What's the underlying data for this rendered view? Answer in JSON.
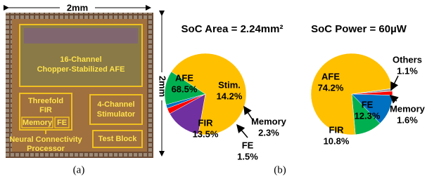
{
  "die_photo": {
    "width_label": "2mm",
    "height_label": "2mm",
    "afe_lines": [
      "16-Channel",
      "Chopper-Stabilized AFE"
    ],
    "fir_lines": [
      "Threefold",
      "FIR"
    ],
    "memory": "Memory",
    "fe": "FE",
    "stim_lines": [
      "4-Channel",
      "Stimulator"
    ],
    "ncp_lines": [
      "Neural Connectivity",
      "Processor"
    ],
    "test_block": "Test Block"
  },
  "captions": [
    "(a)",
    "(b)"
  ],
  "chart_data": [
    {
      "type": "pie",
      "title": "SoC Area = 2.24mm²",
      "categories": [
        "AFE",
        "Stim.",
        "Memory",
        "FE",
        "FIR"
      ],
      "values": [
        68.5,
        14.2,
        2.3,
        1.5,
        13.5
      ],
      "value_labels": [
        "68.5%",
        "14.2%",
        "2.3%",
        "1.5%",
        "13.5%"
      ],
      "colors": [
        "#ffc000",
        "#7030a0",
        "#ff0000",
        "#0070c0",
        "#00b050"
      ]
    },
    {
      "type": "pie",
      "title": "SoC Power = 60µW",
      "categories": [
        "AFE",
        "Others",
        "Memory",
        "FE",
        "FIR"
      ],
      "values": [
        74.2,
        1.1,
        1.6,
        12.3,
        10.8
      ],
      "value_labels": [
        "74.2%",
        "1.1%",
        "1.6%",
        "12.3%",
        "10.8%"
      ],
      "colors": [
        "#ffc000",
        "#a6a6a6",
        "#ff0000",
        "#0070c0",
        "#00b050"
      ]
    }
  ]
}
